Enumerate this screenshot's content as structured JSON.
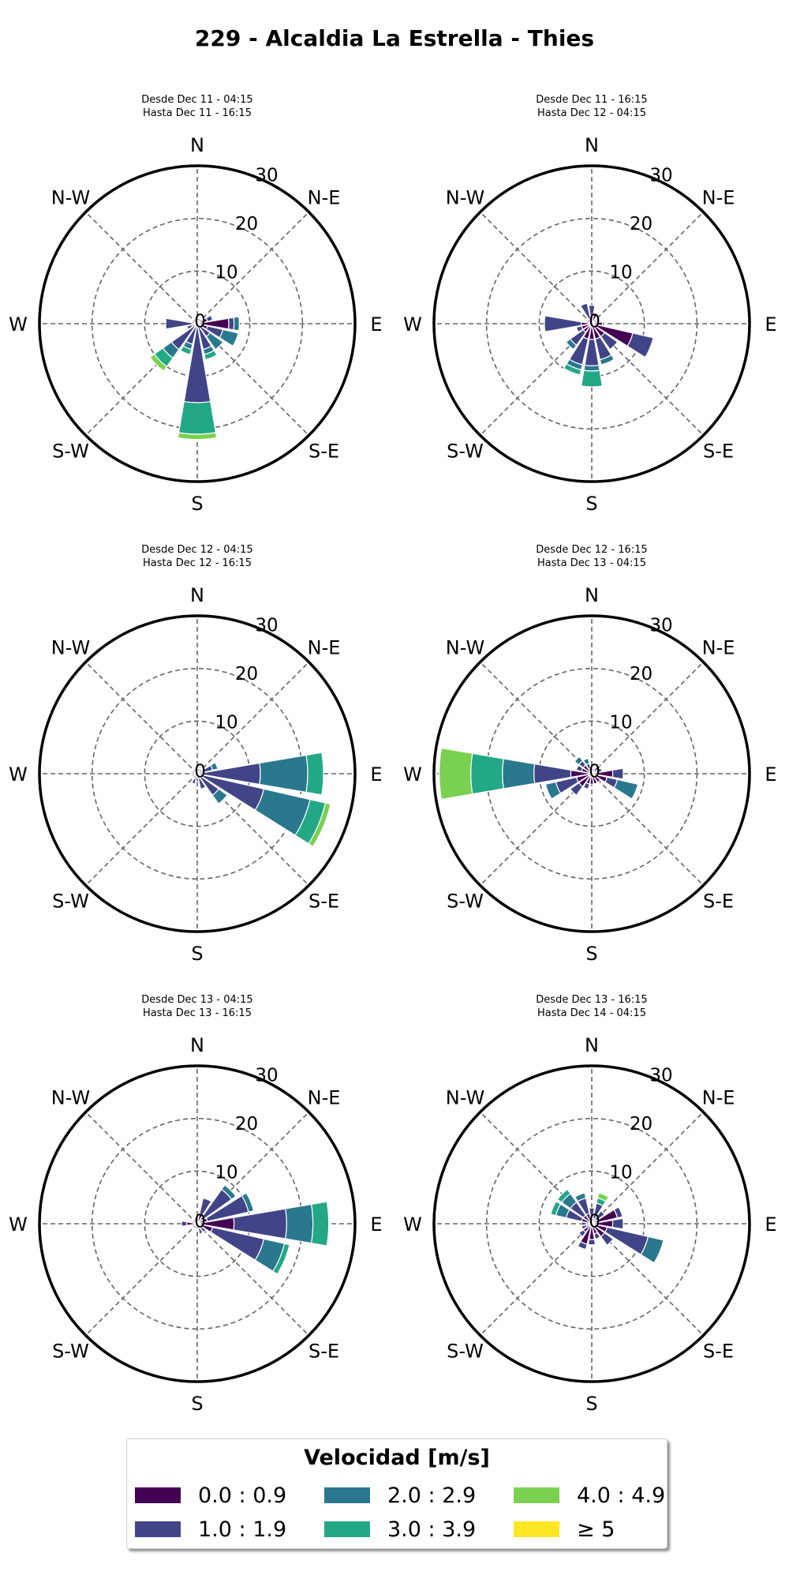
{
  "title": "229 - Alcaldia La Estrella - Thies",
  "colors": [
    "#440154",
    "#414487",
    "#2a788e",
    "#22a884",
    "#7ad151",
    "#fde725"
  ],
  "legend": {
    "title": "Velocidad [m/s]",
    "items": [
      "0.0 : 0.9",
      "1.0 : 1.9",
      "2.0 : 2.9",
      "3.0 : 3.9",
      "4.0 : 4.9",
      "≥  5"
    ]
  },
  "chart_data": [
    {
      "type": "windrose",
      "title": "Desde Dec 11 - 04:15\nHasta Dec 11 - 16:15",
      "title_lines": [
        "Desde Dec 11 - 04:15",
        "Hasta Dec 11 - 16:15"
      ],
      "directions": [
        "N",
        "NNE",
        "NE",
        "ENE",
        "E",
        "ESE",
        "SE",
        "SSE",
        "S",
        "SSW",
        "SW",
        "WSW",
        "W",
        "WNW",
        "NW",
        "NNW"
      ],
      "compass_labels": [
        "N",
        "N-E",
        "E",
        "S-E",
        "S",
        "S-W",
        "W",
        "N-W"
      ],
      "radial_ticks": [
        0,
        10,
        20,
        30
      ],
      "rlim": [
        0,
        30
      ],
      "speed_bins": [
        "0.0 : 0.9",
        "1.0 : 1.9",
        "2.0 : 2.9",
        "3.0 : 3.9",
        "4.0 : 4.9",
        "≥  5"
      ],
      "frequency": [
        [
          0.5,
          0,
          0,
          0,
          0,
          0
        ],
        [
          1,
          0,
          0,
          0,
          0,
          0
        ],
        [
          1,
          0,
          0,
          0,
          0,
          0
        ],
        [
          2,
          1,
          0,
          0,
          0,
          0
        ],
        [
          6,
          1,
          1,
          0,
          0,
          0
        ],
        [
          2,
          3,
          3,
          0,
          0,
          0
        ],
        [
          0,
          3,
          3,
          0,
          0,
          0
        ],
        [
          0,
          5,
          1,
          1,
          0,
          0
        ],
        [
          0,
          15,
          0,
          6,
          1,
          0
        ],
        [
          0,
          4,
          1,
          1,
          0,
          0
        ],
        [
          0,
          6,
          2,
          2,
          1,
          0
        ],
        [
          1,
          1,
          0,
          0,
          0,
          0
        ],
        [
          1,
          5,
          0,
          0,
          0,
          0
        ],
        [
          1,
          0,
          0,
          0,
          0,
          0
        ],
        [
          1,
          0,
          0,
          0,
          0,
          0
        ],
        [
          1,
          0,
          0,
          0,
          0,
          0
        ]
      ]
    },
    {
      "type": "windrose",
      "title": "Desde Dec 11 - 16:15\nHasta Dec 12 - 04:15",
      "title_lines": [
        "Desde Dec 11 - 16:15",
        "Hasta Dec 12 - 04:15"
      ],
      "directions": [
        "N",
        "NNE",
        "NE",
        "ENE",
        "E",
        "ESE",
        "SE",
        "SSE",
        "S",
        "SSW",
        "SW",
        "WSW",
        "W",
        "WNW",
        "NW",
        "NNW"
      ],
      "compass_labels": [
        "N",
        "N-E",
        "E",
        "S-E",
        "S",
        "S-W",
        "W",
        "N-W"
      ],
      "radial_ticks": [
        0,
        10,
        20,
        30
      ],
      "rlim": [
        0,
        30
      ],
      "speed_bins": [
        "0.0 : 0.9",
        "1.0 : 1.9",
        "2.0 : 2.9",
        "3.0 : 3.9",
        "4.0 : 4.9",
        "≥  5"
      ],
      "frequency": [
        [
          0.5,
          3,
          0,
          0,
          0,
          0
        ],
        [
          2,
          0,
          0,
          0,
          0,
          0
        ],
        [
          1,
          0,
          0,
          0,
          0,
          0
        ],
        [
          1,
          0,
          0,
          0,
          0,
          0
        ],
        [
          2,
          0,
          0,
          0,
          0,
          0
        ],
        [
          8,
          4,
          0,
          0,
          0,
          0
        ],
        [
          3,
          3,
          0,
          0,
          0,
          0
        ],
        [
          3,
          4,
          1,
          0,
          0,
          0
        ],
        [
          3,
          5,
          1,
          3,
          0,
          0
        ],
        [
          3,
          5,
          1,
          1,
          0,
          0
        ],
        [
          2,
          3,
          1,
          0,
          0,
          0
        ],
        [
          2,
          1,
          0,
          0,
          0,
          0
        ],
        [
          2,
          7,
          0,
          0,
          0,
          0
        ],
        [
          1,
          0,
          0,
          0,
          0,
          0
        ],
        [
          1,
          0,
          0,
          0,
          0,
          0
        ],
        [
          1,
          3,
          0,
          0,
          0,
          0
        ]
      ]
    },
    {
      "type": "windrose",
      "title": "Desde Dec 12 - 04:15\nHasta Dec 12 - 16:15",
      "title_lines": [
        "Desde Dec 12 - 04:15",
        "Hasta Dec 12 - 16:15"
      ],
      "directions": [
        "N",
        "NNE",
        "NE",
        "ENE",
        "E",
        "ESE",
        "SE",
        "SSE",
        "S",
        "SSW",
        "SW",
        "WSW",
        "W",
        "WNW",
        "NW",
        "NNW"
      ],
      "compass_labels": [
        "N",
        "N-E",
        "E",
        "S-E",
        "S",
        "S-W",
        "W",
        "N-W"
      ],
      "radial_ticks": [
        0,
        10,
        20,
        30
      ],
      "rlim": [
        0,
        30
      ],
      "speed_bins": [
        "0.0 : 0.9",
        "1.0 : 1.9",
        "2.0 : 2.9",
        "3.0 : 3.9",
        "4.0 : 4.9",
        "≥  5"
      ],
      "frequency": [
        [
          0.5,
          0,
          0,
          0,
          0,
          0
        ],
        [
          1,
          0,
          0,
          0,
          0,
          0
        ],
        [
          1,
          0,
          0,
          0,
          0,
          0
        ],
        [
          1,
          2,
          1,
          0,
          0,
          0
        ],
        [
          1,
          11,
          9,
          3,
          0,
          0
        ],
        [
          1,
          12,
          9,
          3,
          1,
          0
        ],
        [
          1,
          4,
          2,
          0,
          0,
          0
        ],
        [
          1,
          2,
          0,
          0,
          0,
          0
        ],
        [
          0.5,
          1,
          0,
          0,
          0,
          0
        ],
        [
          1,
          1,
          0,
          0,
          0,
          0
        ],
        [
          1,
          0,
          0,
          0,
          0,
          0
        ],
        [
          1,
          0,
          0,
          0,
          0,
          0
        ],
        [
          1,
          0,
          0,
          0,
          0,
          0
        ],
        [
          1,
          0,
          0,
          0,
          0,
          0
        ],
        [
          1,
          0,
          0,
          0,
          0,
          0
        ],
        [
          1,
          0,
          0,
          0,
          0,
          0
        ]
      ]
    },
    {
      "type": "windrose",
      "title": "Desde Dec 12 - 16:15\nHasta Dec 13 - 04:15",
      "title_lines": [
        "Desde Dec 12 - 16:15",
        "Hasta Dec 13 - 04:15"
      ],
      "directions": [
        "N",
        "NNE",
        "NE",
        "ENE",
        "E",
        "ESE",
        "SE",
        "SSE",
        "S",
        "SSW",
        "SW",
        "WSW",
        "W",
        "WNW",
        "NW",
        "NNW"
      ],
      "compass_labels": [
        "N",
        "N-E",
        "E",
        "S-E",
        "S",
        "S-W",
        "W",
        "N-W"
      ],
      "radial_ticks": [
        0,
        10,
        20,
        30
      ],
      "rlim": [
        0,
        30
      ],
      "speed_bins": [
        "0.0 : 0.9",
        "1.0 : 1.9",
        "2.0 : 2.9",
        "3.0 : 3.9",
        "4.0 : 4.9",
        "≥  5"
      ],
      "frequency": [
        [
          0.5,
          0,
          0,
          0,
          0,
          0
        ],
        [
          1,
          0,
          0,
          0,
          0,
          0
        ],
        [
          2,
          0,
          0,
          0,
          0,
          0
        ],
        [
          1,
          1,
          0,
          0,
          0,
          0
        ],
        [
          4,
          2,
          0,
          0,
          0,
          0
        ],
        [
          3,
          2,
          4,
          0,
          0,
          0
        ],
        [
          2,
          0,
          0,
          0,
          0,
          0
        ],
        [
          2,
          0,
          0,
          0,
          0,
          0
        ],
        [
          2,
          0,
          0,
          0,
          0,
          0
        ],
        [
          2,
          1,
          0,
          0,
          0,
          0
        ],
        [
          3,
          2,
          0,
          0,
          0,
          0
        ],
        [
          3,
          4,
          2,
          0,
          0,
          0
        ],
        [
          4,
          7,
          6,
          6,
          6,
          0
        ],
        [
          2,
          1,
          0,
          0,
          0,
          0
        ],
        [
          2,
          1,
          1,
          0,
          0,
          0
        ],
        [
          1,
          1,
          1,
          0,
          0,
          0
        ]
      ]
    },
    {
      "type": "windrose",
      "title": "Desde Dec 13 - 04:15\nHasta Dec 13 - 16:15",
      "title_lines": [
        "Desde Dec 13 - 04:15",
        "Hasta Dec 13 - 16:15"
      ],
      "directions": [
        "N",
        "NNE",
        "NE",
        "ENE",
        "E",
        "ESE",
        "SE",
        "SSE",
        "S",
        "SSW",
        "SW",
        "WSW",
        "W",
        "WNW",
        "NW",
        "NNW"
      ],
      "compass_labels": [
        "N",
        "N-E",
        "E",
        "S-E",
        "S",
        "S-W",
        "W",
        "N-W"
      ],
      "radial_ticks": [
        0,
        10,
        20,
        30
      ],
      "rlim": [
        0,
        30
      ],
      "speed_bins": [
        "0.0 : 0.9",
        "1.0 : 1.9",
        "2.0 : 2.9",
        "3.0 : 3.9",
        "4.0 : 4.9",
        "≥  5"
      ],
      "frequency": [
        [
          0.5,
          0,
          0,
          0,
          0,
          0
        ],
        [
          2,
          3,
          0,
          0,
          0,
          0
        ],
        [
          1,
          7,
          1,
          0,
          0,
          0
        ],
        [
          2,
          8,
          1,
          0,
          0,
          0
        ],
        [
          7,
          10,
          5,
          3,
          0,
          0
        ],
        [
          3,
          10,
          4,
          1,
          0,
          0
        ],
        [
          1,
          1,
          0,
          0,
          0,
          0
        ],
        [
          1,
          1,
          0,
          0,
          0,
          0
        ],
        [
          1,
          0,
          0,
          0,
          0,
          0
        ],
        [
          1,
          0,
          0,
          0,
          0,
          0
        ],
        [
          1,
          0,
          0,
          0,
          0,
          0
        ],
        [
          1,
          0,
          0,
          0,
          0,
          0
        ],
        [
          2,
          1,
          0,
          0,
          0,
          0
        ],
        [
          1,
          0,
          0,
          0,
          0,
          0
        ],
        [
          1,
          0,
          0,
          0,
          0,
          0
        ],
        [
          1,
          0,
          0,
          0,
          0,
          0
        ]
      ]
    },
    {
      "type": "windrose",
      "title": "Desde Dec 13 - 16:15\nHasta Dec 14 - 04:15",
      "title_lines": [
        "Desde Dec 13 - 16:15",
        "Hasta Dec 14 - 04:15"
      ],
      "directions": [
        "N",
        "NNE",
        "NE",
        "ENE",
        "E",
        "ESE",
        "SE",
        "SSE",
        "S",
        "SSW",
        "SW",
        "WSW",
        "W",
        "WNW",
        "NW",
        "NNW"
      ],
      "compass_labels": [
        "N",
        "N-E",
        "E",
        "S-E",
        "S",
        "S-W",
        "W",
        "N-W"
      ],
      "radial_ticks": [
        0,
        10,
        20,
        30
      ],
      "rlim": [
        0,
        30
      ],
      "speed_bins": [
        "0.0 : 0.9",
        "1.0 : 1.9",
        "2.0 : 2.9",
        "3.0 : 3.9",
        "4.0 : 4.9",
        "≥  5"
      ],
      "frequency": [
        [
          1,
          2,
          0,
          0,
          0,
          0
        ],
        [
          1,
          3,
          0,
          1,
          1,
          0
        ],
        [
          1,
          2,
          0,
          0,
          0,
          0
        ],
        [
          5,
          1,
          0,
          0,
          0,
          0
        ],
        [
          4,
          2,
          0,
          0,
          0,
          0
        ],
        [
          3,
          8,
          3,
          0,
          0,
          0
        ],
        [
          3,
          2,
          0,
          0,
          0,
          0
        ],
        [
          2,
          1,
          0,
          0,
          0,
          0
        ],
        [
          3,
          1,
          0,
          0,
          0,
          0
        ],
        [
          4,
          1,
          0,
          0,
          0,
          0
        ],
        [
          2,
          1,
          0,
          0,
          0,
          0
        ],
        [
          1,
          1,
          0,
          0,
          0,
          0
        ],
        [
          1,
          1,
          0,
          0,
          0,
          0
        ],
        [
          2,
          3,
          2,
          1,
          0,
          0
        ],
        [
          2,
          3,
          2,
          1,
          0,
          0
        ],
        [
          2,
          3,
          1,
          0,
          0,
          0
        ]
      ]
    }
  ]
}
